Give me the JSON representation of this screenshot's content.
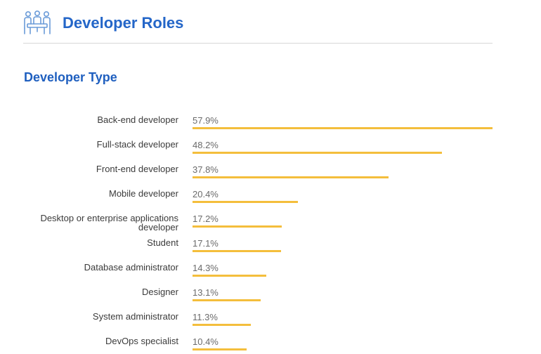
{
  "header": {
    "title": "Developer Roles",
    "icon": "team-meeting-icon",
    "accent_color": "#2466c8"
  },
  "chart_data": {
    "type": "bar",
    "orientation": "horizontal",
    "title": "Developer Type",
    "xlabel": "",
    "ylabel": "",
    "xlim": [
      0,
      57.9
    ],
    "grid": false,
    "bar_color": "#f4be3c",
    "categories": [
      "Back-end developer",
      "Full-stack developer",
      "Front-end developer",
      "Mobile developer",
      "Desktop or enterprise applications developer",
      "Student",
      "Database administrator",
      "Designer",
      "System administrator",
      "DevOps specialist"
    ],
    "values": [
      57.9,
      48.2,
      37.8,
      20.4,
      17.2,
      17.1,
      14.3,
      13.1,
      11.3,
      10.4
    ],
    "value_labels": [
      "57.9%",
      "48.2%",
      "37.8%",
      "20.4%",
      "17.2%",
      "17.1%",
      "14.3%",
      "13.1%",
      "11.3%",
      "10.4%"
    ]
  }
}
